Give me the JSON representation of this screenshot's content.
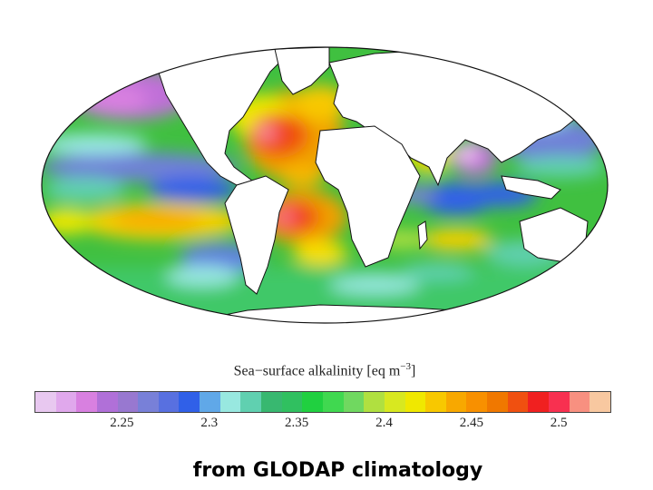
{
  "colorbar": {
    "title": "Sea−surface alkalinity [eq m",
    "title_exponent": "−3",
    "title_close": "]",
    "tick_labels": [
      "2.25",
      "2.3",
      "2.35",
      "2.4",
      "2.45",
      "2.5"
    ],
    "tick_values": [
      2.25,
      2.3,
      2.35,
      2.4,
      2.45,
      2.5
    ],
    "range": [
      2.2,
      2.53
    ],
    "colors": [
      "#e8c8f0",
      "#e0a8ec",
      "#d880e0",
      "#b070d8",
      "#9878d0",
      "#7880d8",
      "#5870e0",
      "#3060e8",
      "#60a8e8",
      "#98e8e0",
      "#60d0b0",
      "#38b870",
      "#30c060",
      "#20d040",
      "#40d850",
      "#70d860",
      "#b0e040",
      "#d8e820",
      "#f0e800",
      "#f8c800",
      "#f8a800",
      "#f89000",
      "#f07800",
      "#f05010",
      "#f02020",
      "#f83050",
      "#f89080",
      "#f8c8a0"
    ]
  },
  "map": {
    "projection": "Mollweide",
    "land_color": "#ffffff",
    "ocean_background": "#40c040"
  },
  "caption": "from GLODAP climatology"
}
